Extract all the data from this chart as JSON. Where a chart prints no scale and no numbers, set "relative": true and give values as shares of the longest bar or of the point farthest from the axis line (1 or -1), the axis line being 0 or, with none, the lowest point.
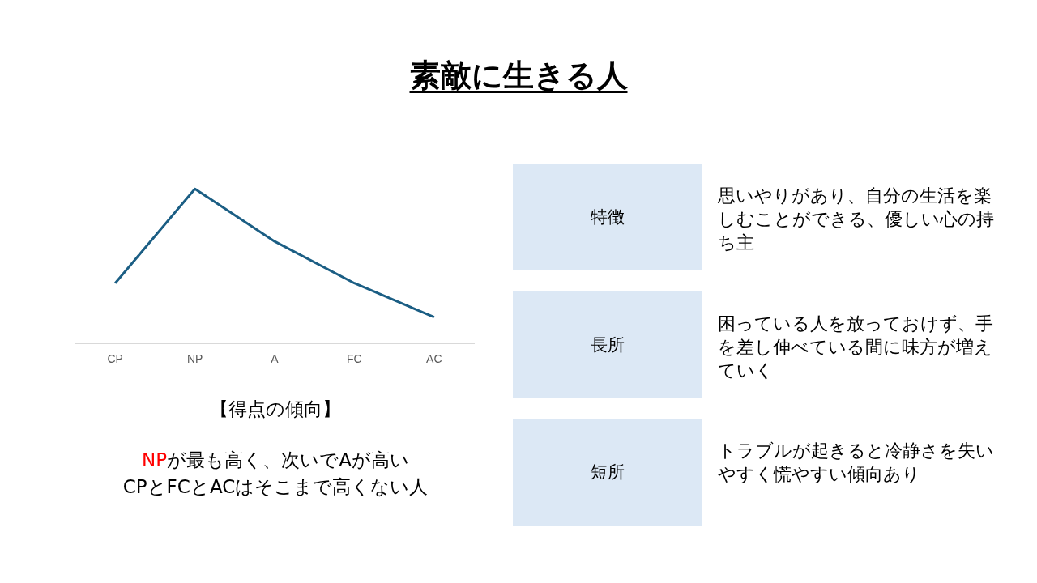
{
  "chart_data": {
    "type": "line",
    "title": "素敵に生きる人",
    "relative": true,
    "categories": [
      "CP",
      "NP",
      "A",
      "FC",
      "AC"
    ],
    "series": [
      {
        "color": "#1b5e84",
        "values": [
          0.39,
          1,
          0.66,
          0.39,
          0.17
        ]
      }
    ],
    "marker": "none",
    "line_style": "solid",
    "grid": false,
    "legend": false,
    "annotations": [
      "【得点の傾向】",
      "NP",
      "が最も高く、次いでAが高い",
      "CPとFCとACはそこまで高くない人",
      "特徴",
      "思いやりがあり、自分の生活を楽しむことができる、優しい心の持ち主",
      "長所",
      "困っている人を放っておけず、手を差し伸べている間に味方が増えていく",
      "短所",
      "トラブルが起きると冷静さを失いやすく慌やすい傾向あり"
    ]
  }
}
